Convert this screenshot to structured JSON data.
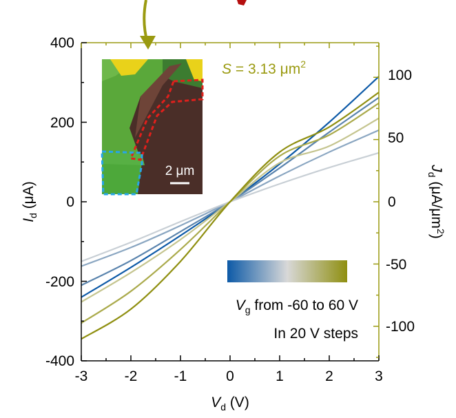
{
  "chart_data": {
    "type": "line",
    "xlabel": {
      "main": "V",
      "sub": "d",
      "rest": " (V)"
    },
    "ylabel": {
      "main": "I",
      "sub": "d",
      "rest": " (μA)"
    },
    "ylabel_right": {
      "main": "J",
      "sub": "d",
      "rest": " (μA/μm",
      "sup": "2",
      "end": ")"
    },
    "xlim": [
      -3,
      3
    ],
    "ylim": [
      -400,
      400
    ],
    "y2lim": [
      -127.8,
      127.8
    ],
    "x_ticks": [
      -3,
      -2,
      -1,
      0,
      1,
      2,
      3
    ],
    "y_ticks": [
      -400,
      -200,
      0,
      200,
      400
    ],
    "y2_ticks": [
      -100,
      -50,
      0,
      50,
      100
    ],
    "x_tick_labels": [
      "-3",
      "-2",
      "-1",
      "0",
      "1",
      "2",
      "3"
    ],
    "y_tick_labels": [
      "-400",
      "-200",
      "0",
      "200",
      "400"
    ],
    "y2_tick_labels": [
      "-100",
      "-50",
      "0",
      "50",
      "100"
    ],
    "series": [
      {
        "color": "#0d5aa7",
        "x": [
          -3,
          -2,
          -1,
          0,
          1,
          2,
          3
        ],
        "y": [
          -240,
          -165,
          -85,
          0,
          95,
          200,
          315
        ]
      },
      {
        "color": "#5a84ad",
        "x": [
          -3,
          -2,
          -1,
          0,
          1,
          2,
          3
        ],
        "y": [
          -210,
          -148,
          -75,
          0,
          85,
          175,
          262
        ]
      },
      {
        "color": "#8aa6c1",
        "x": [
          -3,
          -2,
          -1,
          0,
          1,
          2,
          3
        ],
        "y": [
          -162,
          -115,
          -60,
          0,
          65,
          125,
          180
        ]
      },
      {
        "color": "#c8cfd5",
        "x": [
          -3,
          -2,
          -1,
          0,
          1,
          2,
          3
        ],
        "y": [
          -150,
          -102,
          -50,
          0,
          45,
          86,
          123
        ]
      },
      {
        "color": "#c4c48e",
        "x": [
          -3,
          -2,
          -1,
          0,
          1,
          2,
          3
        ],
        "y": [
          -252,
          -178,
          -95,
          0,
          98,
          140,
          210
        ]
      },
      {
        "color": "#aaaa4b",
        "x": [
          -3,
          -2,
          -1,
          0,
          1,
          2,
          3
        ],
        "y": [
          -305,
          -225,
          -120,
          0,
          115,
          168,
          248
        ]
      },
      {
        "color": "#8f8f10",
        "x": [
          -3,
          -2,
          -1,
          0,
          1,
          2,
          3
        ],
        "y": [
          -345,
          -270,
          -150,
          0,
          125,
          188,
          275
        ]
      }
    ],
    "legend": {
      "gradient_colors": [
        "#0d5aa7",
        "#d8d8d8",
        "#8f8f10"
      ],
      "line1": {
        "main": "V",
        "sub": "g",
        "rest": " from -60 to 60 V"
      },
      "line2": "In 20 V steps"
    },
    "inset": {
      "area": {
        "main": "S",
        "rest": " = 3.13 μm",
        "sup": "2"
      },
      "scale_bar": "2 μm"
    }
  },
  "colors": {
    "axis": "#000000",
    "right_axis": "#9a9a10",
    "arrow": "#9a9a10",
    "arrow_red": "#b50f0f"
  }
}
